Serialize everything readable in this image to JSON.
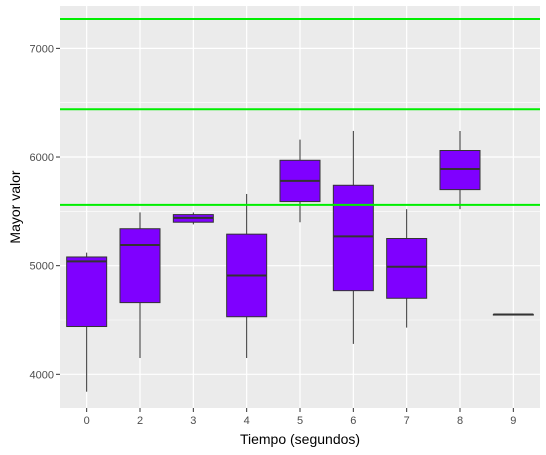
{
  "chart_data": {
    "type": "boxplot",
    "xlabel": "Tiempo (segundos)",
    "ylabel": "Mayor valor",
    "categories": [
      "0",
      "2",
      "3",
      "4",
      "5",
      "6",
      "7",
      "8",
      "9"
    ],
    "boxes": [
      {
        "category": "0",
        "min": 3840,
        "q1": 4440,
        "median": 5040,
        "q3": 5080,
        "max": 5120
      },
      {
        "category": "2",
        "min": 4150,
        "q1": 4660,
        "median": 5190,
        "q3": 5340,
        "max": 5490
      },
      {
        "category": "3",
        "min": 5380,
        "q1": 5400,
        "median": 5440,
        "q3": 5470,
        "max": 5490
      },
      {
        "category": "4",
        "min": 4150,
        "q1": 4530,
        "median": 4910,
        "q3": 5290,
        "max": 5660
      },
      {
        "category": "5",
        "min": 5400,
        "q1": 5590,
        "median": 5780,
        "q3": 5970,
        "max": 6160
      },
      {
        "category": "6",
        "min": 4280,
        "q1": 4770,
        "median": 5270,
        "q3": 5740,
        "max": 6240
      },
      {
        "category": "7",
        "min": 4430,
        "q1": 4700,
        "median": 4990,
        "q3": 5250,
        "max": 5520
      },
      {
        "category": "8",
        "min": 5520,
        "q1": 5700,
        "median": 5890,
        "q3": 6060,
        "max": 6240
      },
      {
        "category": "9",
        "min": 4550,
        "q1": 4550,
        "median": 4550,
        "q3": 4550,
        "max": 4550
      }
    ],
    "reference_lines": [
      5560,
      6440,
      7270
    ],
    "y_ticks": [
      4000,
      5000,
      6000,
      7000
    ],
    "ylim": [
      3690,
      7390
    ],
    "grid": true,
    "colors": {
      "box_fill": "#7f00ff",
      "box_stroke": "#333333",
      "reference_line": "#00ee00",
      "panel_background": "#ebebeb",
      "grid": "#ffffff"
    }
  }
}
